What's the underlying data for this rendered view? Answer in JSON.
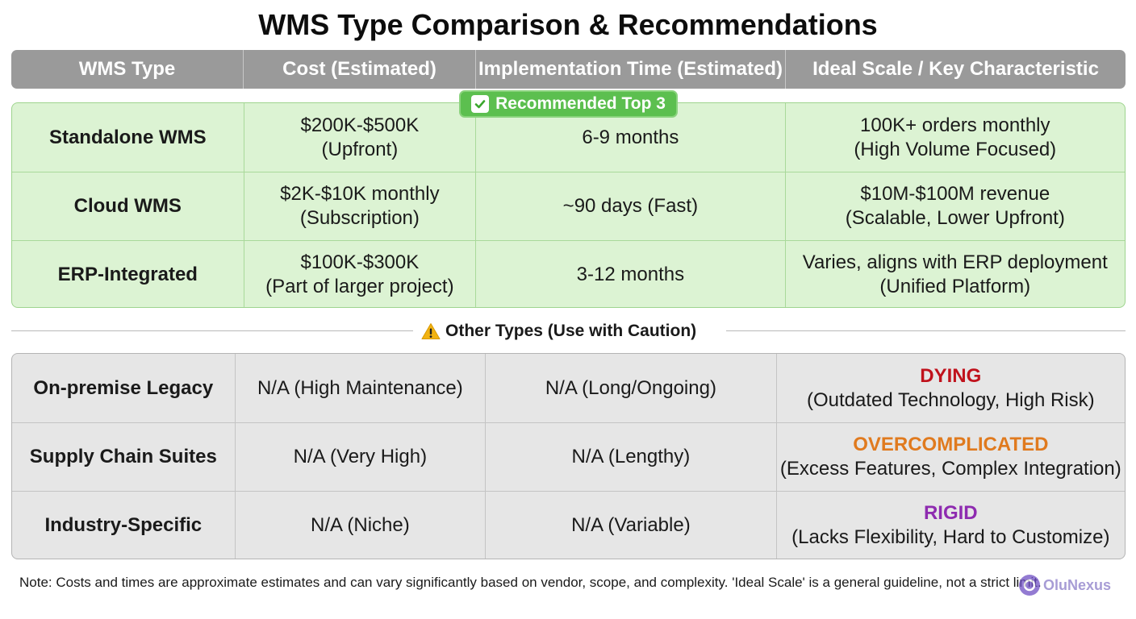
{
  "title": "WMS Type Comparison & Recommendations",
  "header": {
    "columns": [
      "WMS Type",
      "Cost (Estimated)",
      "Implementation Time (Estimated)",
      "Ideal Scale / Key Characteristic"
    ]
  },
  "recommended": {
    "badge": "Recommended Top 3",
    "badge_icon": "check-box-icon",
    "rows": [
      {
        "type": "Standalone WMS",
        "cost": [
          "$200K-$500K",
          "(Upfront)"
        ],
        "time": "6-9 months",
        "scale": [
          "100K+ orders monthly",
          "(High Volume Focused)"
        ]
      },
      {
        "type": "Cloud WMS",
        "cost": [
          "$2K-$10K monthly",
          "(Subscription)"
        ],
        "time": "~90 days (Fast)",
        "scale": [
          "$10M-$100M revenue",
          "(Scalable, Lower Upfront)"
        ]
      },
      {
        "type": "ERP-Integrated",
        "cost": [
          "$100K-$300K",
          "(Part of larger project)"
        ],
        "time": "3-12 months",
        "scale": [
          "Varies, aligns with ERP deployment",
          "(Unified Platform)"
        ]
      }
    ]
  },
  "other": {
    "label": "Other Types (Use with Caution)",
    "label_icon": "warning-icon",
    "rows": [
      {
        "type": "On-premise Legacy",
        "cost": "N/A (High Maintenance)",
        "time": "N/A (Long/Ongoing)",
        "status": "DYING",
        "status_color": "#c0121c",
        "detail": "(Outdated Technology, High Risk)"
      },
      {
        "type": "Supply Chain Suites",
        "cost": "N/A (Very High)",
        "time": "N/A (Lengthy)",
        "status": "OVERCOMPLICATED",
        "status_color": "#e07a1e",
        "detail": "(Excess Features, Complex Integration)"
      },
      {
        "type": "Industry-Specific",
        "cost": "N/A (Niche)",
        "time": "N/A (Variable)",
        "status": "RIGID",
        "status_color": "#8e2bb0",
        "detail": "(Lacks Flexibility, Hard to Customize)"
      }
    ]
  },
  "note": "Note: Costs and times are approximate estimates and can vary significantly based on vendor, scope, and complexity. 'Ideal Scale' is a general guideline, not a strict limit.",
  "watermark": "OluNexus",
  "colors": {
    "header_bg": "#9a9a9a",
    "recommended_bg": "#dcf3d3",
    "recommended_badge": "#5cbf4f",
    "other_bg": "#e6e6e6"
  }
}
